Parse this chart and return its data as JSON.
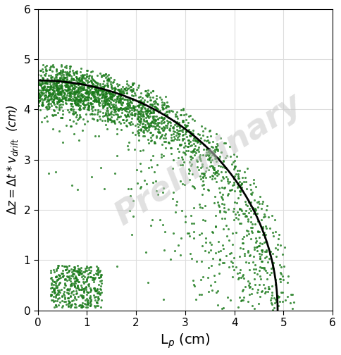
{
  "xlabel": "L$_p$ (cm)",
  "ylabel": "$\\Delta z = \\Delta t * v_{drift}$  (cm)",
  "xlim": [
    0,
    6
  ],
  "ylim": [
    0,
    6
  ],
  "xticks": [
    0,
    1,
    2,
    3,
    4,
    5,
    6
  ],
  "yticks": [
    0,
    1,
    2,
    3,
    4,
    5,
    6
  ],
  "dot_color": "#1a7a1a",
  "dot_size": 5,
  "dot_alpha": 0.8,
  "curve_color": "black",
  "curve_lw": 2.0,
  "watermark_text": "Preliminary",
  "watermark_color": "#c8c8c8",
  "watermark_alpha": 0.55,
  "ellipse_a": 4.88,
  "ellipse_b": 4.58,
  "background_color": "#ffffff",
  "grid_color": "#dddddd",
  "figsize": [
    4.84,
    5.04
  ],
  "dpi": 100,
  "seed": 42,
  "n_points": 3500
}
